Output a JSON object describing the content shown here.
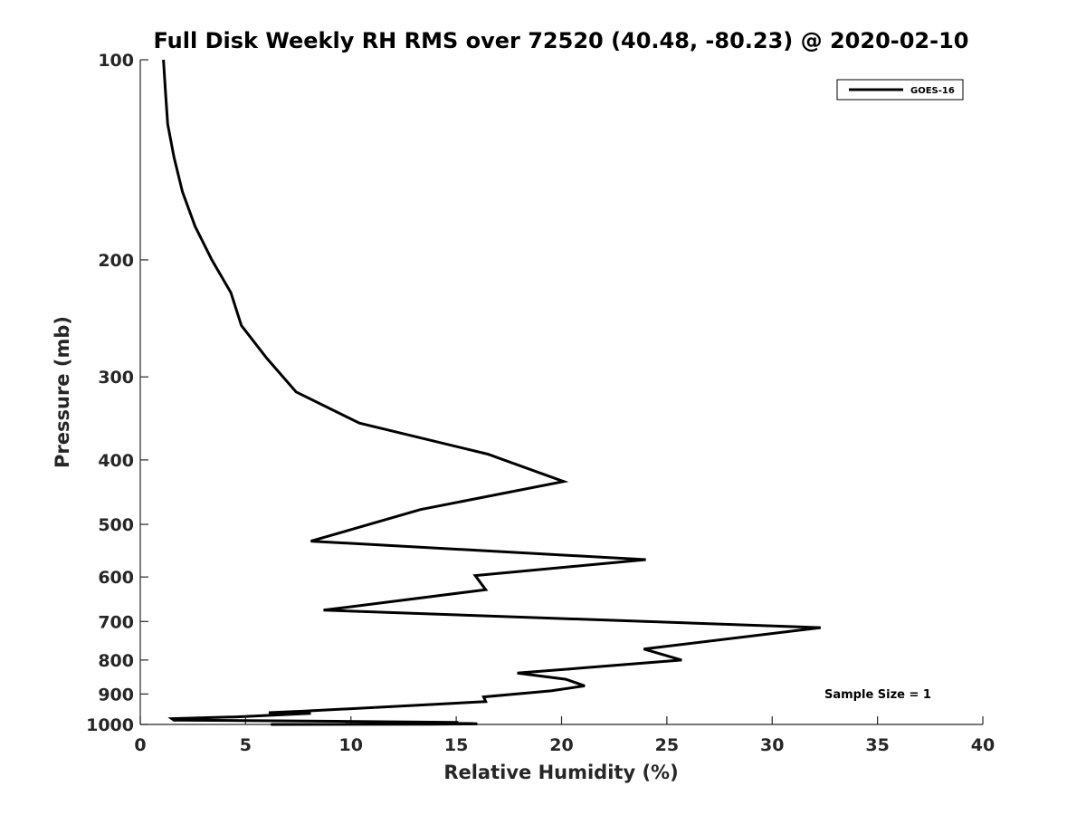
{
  "chart_data": {
    "type": "line",
    "title": "Full Disk Weekly RH RMS over 72520 (40.48, -80.23) @ 2020-02-10",
    "xlabel": "Relative Humidity (%)",
    "ylabel": "Pressure (mb)",
    "xlim": [
      0,
      40
    ],
    "ylim": [
      100,
      1000
    ],
    "yscale": "log",
    "y_reversed": true,
    "x_ticks": [
      0,
      5,
      10,
      15,
      20,
      25,
      30,
      35,
      40
    ],
    "y_ticks": [
      100,
      200,
      300,
      400,
      500,
      600,
      700,
      800,
      900,
      1000
    ],
    "grid": false,
    "legend_position": "top-right",
    "annotation": "Sample Size = 1",
    "series": [
      {
        "name": "GOES-16",
        "color": "#000000",
        "x": [
          1.1,
          1.2,
          1.3,
          1.6,
          2.0,
          2.6,
          3.4,
          4.3,
          4.8,
          6.0,
          7.4,
          10.4,
          16.5,
          20.1,
          13.3,
          8.1,
          24.0,
          15.9,
          16.4,
          8.7,
          32.3,
          23.9,
          25.7,
          17.9,
          20.2,
          21.1,
          19.5,
          16.3,
          16.4,
          7.8,
          6.1,
          8.1,
          4.6,
          1.5,
          1.6,
          9.3,
          15.1,
          10.4,
          15.8,
          16.0,
          13.8,
          6.2
        ],
        "y": [
          100,
          112,
          125,
          140,
          158,
          178,
          200,
          224,
          251,
          281,
          316,
          352,
          392,
          431,
          475,
          530,
          565,
          597,
          627,
          673,
          715,
          770,
          800,
          837,
          855,
          875,
          890,
          909,
          924,
          955,
          960,
          962,
          974,
          980,
          985,
          989,
          993,
          995,
          997,
          998,
          999,
          1000
        ]
      }
    ]
  }
}
